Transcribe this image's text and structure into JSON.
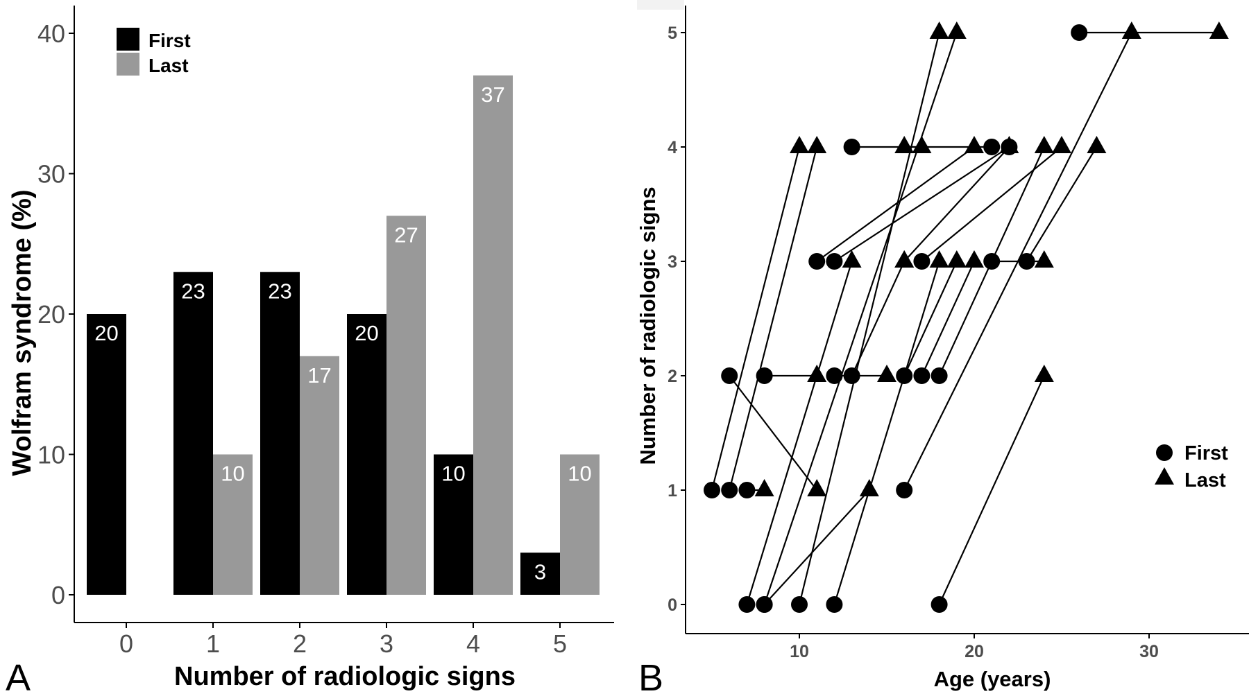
{
  "panels": {
    "a_letter": "A",
    "b_letter": "B"
  },
  "chart_data": [
    {
      "type": "bar",
      "panel": "A",
      "xlabel": "Number of radiologic signs",
      "ylabel": "Wolfram syndrome (%)",
      "categories": [
        "0",
        "1",
        "2",
        "3",
        "4",
        "5"
      ],
      "ylim": [
        0,
        40
      ],
      "yticks": [
        "0",
        "10",
        "20",
        "30",
        "40"
      ],
      "legend_position": "top-left",
      "grid": false,
      "series": [
        {
          "name": "First",
          "color": "#000000",
          "values": [
            20,
            23,
            23,
            20,
            10,
            3
          ],
          "labels": [
            "20",
            "23",
            "23",
            "20",
            "10",
            "3"
          ]
        },
        {
          "name": "Last",
          "color": "#999999",
          "values": [
            0,
            10,
            17,
            27,
            37,
            10
          ],
          "labels": [
            "",
            "10",
            "17",
            "27",
            "37",
            "10"
          ]
        }
      ]
    },
    {
      "type": "scatter",
      "panel": "B",
      "xlabel": "Age (years)",
      "ylabel": "Number of radiologic signs",
      "xticks": [
        "10",
        "20",
        "30"
      ],
      "yticks": [
        "0",
        "1",
        "2",
        "3",
        "4",
        "5"
      ],
      "xlim": [
        4.2,
        35
      ],
      "ylim": [
        -0.25,
        5.2
      ],
      "legend_position": "right",
      "grid": false,
      "series": [
        {
          "name": "First",
          "marker": "circle",
          "color": "#000000"
        },
        {
          "name": "Last",
          "marker": "triangle",
          "color": "#000000"
        }
      ],
      "trajectories": [
        {
          "first": [
            5,
            1
          ],
          "last": [
            10,
            4
          ]
        },
        {
          "first": [
            6,
            1
          ],
          "last": [
            11,
            4
          ]
        },
        {
          "first": [
            7,
            1
          ],
          "last": [
            8,
            1
          ]
        },
        {
          "first": [
            6,
            2
          ],
          "last": [
            11,
            1
          ]
        },
        {
          "first": [
            8,
            2
          ],
          "last": [
            11,
            2
          ]
        },
        {
          "first": [
            12,
            2
          ],
          "last": [
            15,
            2
          ]
        },
        {
          "first": [
            13,
            2
          ],
          "last": [
            16,
            3
          ]
        },
        {
          "first": [
            16,
            2
          ],
          "last": [
            19,
            3
          ]
        },
        {
          "first": [
            17,
            2
          ],
          "last": [
            20,
            3
          ]
        },
        {
          "first": [
            18,
            2
          ],
          "last": [
            24,
            4
          ]
        },
        {
          "first": [
            11,
            3
          ],
          "last": [
            20,
            4
          ]
        },
        {
          "first": [
            12,
            3
          ],
          "last": [
            22,
            4
          ]
        },
        {
          "first": [
            17,
            3
          ],
          "last": [
            25,
            4
          ]
        },
        {
          "first": [
            21,
            3
          ],
          "last": [
            24,
            3
          ]
        },
        {
          "first": [
            23,
            3
          ],
          "last": [
            27,
            4
          ]
        },
        {
          "first": [
            13,
            4
          ],
          "last": [
            17,
            4
          ]
        },
        {
          "first": [
            21,
            4
          ],
          "last": [
            16,
            4
          ]
        },
        {
          "first": [
            22,
            4
          ],
          "last": [
            16,
            3
          ]
        },
        {
          "first": [
            26,
            5
          ],
          "last": [
            34,
            5
          ]
        },
        {
          "first": [
            7,
            0
          ],
          "last": [
            13,
            3
          ]
        },
        {
          "first": [
            8,
            0
          ],
          "last": [
            14,
            1
          ]
        },
        {
          "first": [
            8,
            0
          ],
          "last": [
            19,
            5
          ]
        },
        {
          "first": [
            10,
            0
          ],
          "last": [
            18,
            5
          ]
        },
        {
          "first": [
            12,
            0
          ],
          "last": [
            18,
            3
          ]
        },
        {
          "first": [
            16,
            1
          ],
          "last": [
            29,
            5
          ]
        },
        {
          "first": [
            18,
            0
          ],
          "last": [
            24,
            2
          ]
        }
      ]
    }
  ]
}
